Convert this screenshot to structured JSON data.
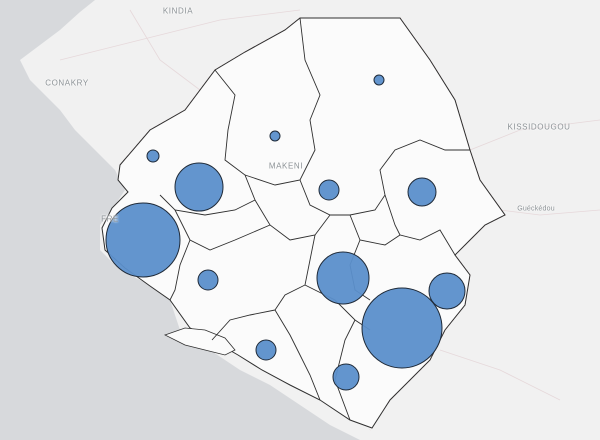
{
  "map": {
    "place_labels": [
      {
        "id": "kindia",
        "text": "KINDIA"
      },
      {
        "id": "conakry",
        "text": "CONAKRY"
      },
      {
        "id": "kissidougou",
        "text": "KISSIDOUGOU"
      },
      {
        "id": "makeni",
        "text": "MAKENI"
      },
      {
        "id": "gueckedou",
        "text": "Guéckédou"
      },
      {
        "id": "freetown",
        "text": "FRE"
      }
    ],
    "colors": {
      "sea": "#d7d9dc",
      "land_outside": "#f1f1f1",
      "country": "#fbfbfb",
      "district_border": "#2f2f2f",
      "intl_border": "#d7a2a6",
      "bubble_fill": "#5b8fcb",
      "bubble_stroke": "#1f2a38"
    },
    "symbol_style": "proportional-circles"
  }
}
